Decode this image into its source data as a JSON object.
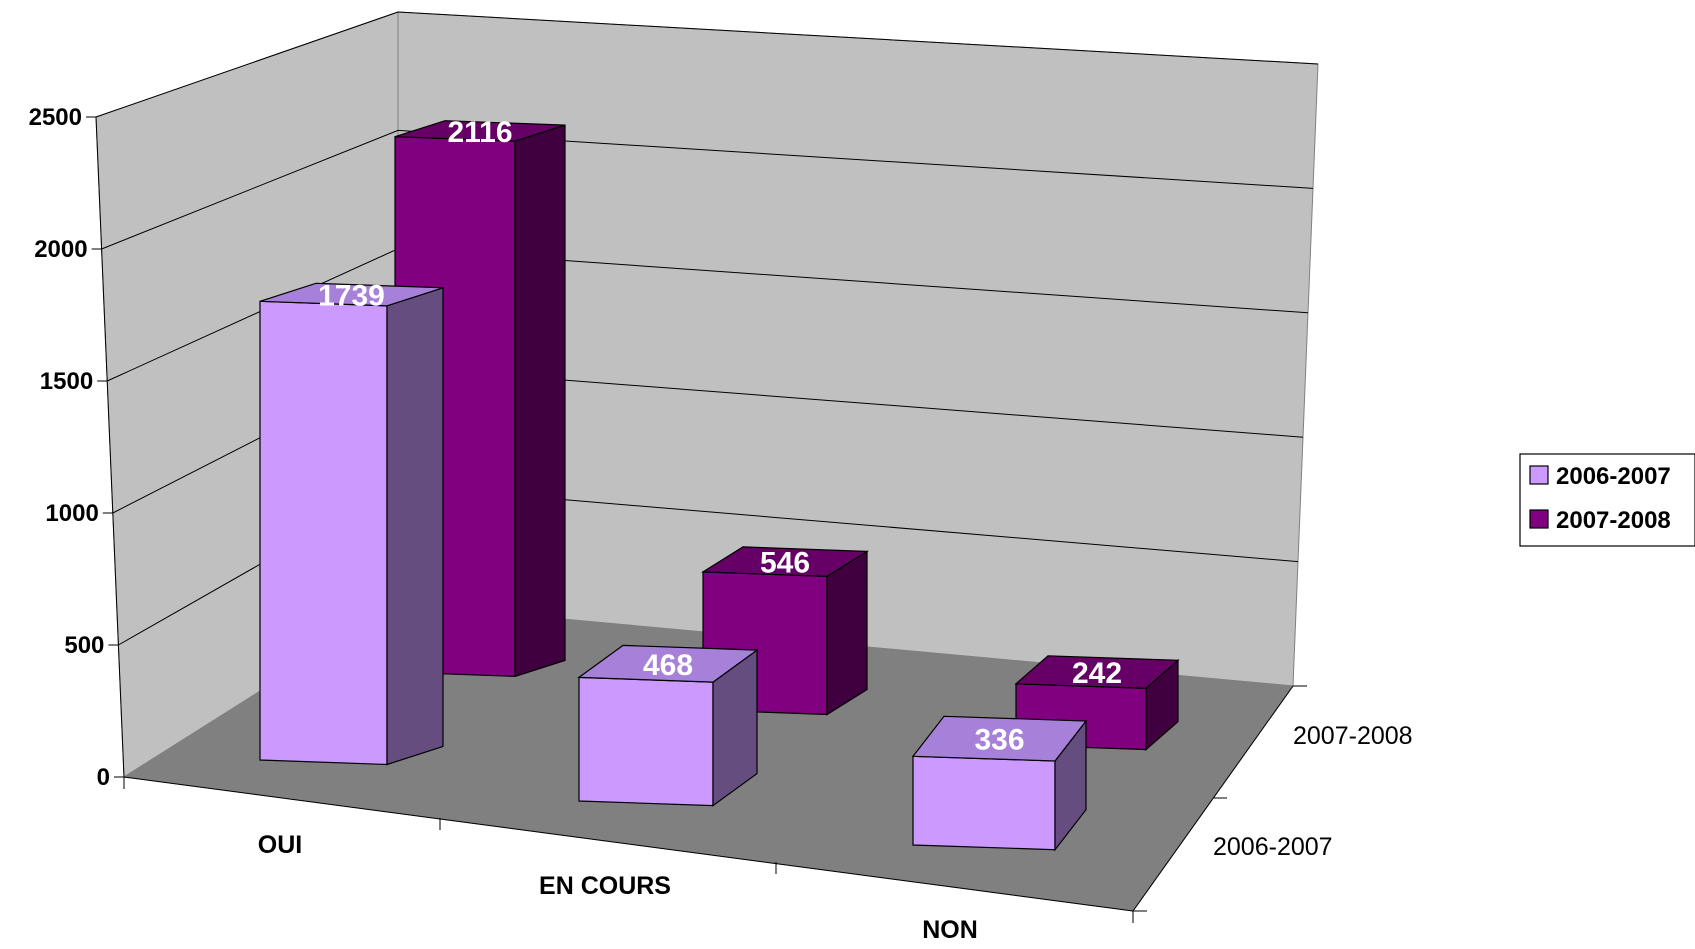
{
  "chart_data": {
    "type": "bar",
    "title": "",
    "categories": [
      "OUI",
      "EN COURS",
      "NON"
    ],
    "series": [
      {
        "name": "2006-2007",
        "values": [
          1739,
          468,
          336
        ]
      },
      {
        "name": "2007-2008",
        "values": [
          2116,
          546,
          242
        ]
      }
    ],
    "ylim": [
      0,
      2500
    ],
    "yticks": [
      "0",
      "500",
      "1000",
      "1500",
      "2000",
      "2500"
    ],
    "depth_labels": [
      "2007-2008",
      "2006-2007"
    ],
    "legend_position": "right",
    "grid": true,
    "colors": {
      "series_2006_front": "#cc99ff",
      "series_2006_top": "#a680d9",
      "series_2006_side": "#664d80",
      "series_2007_front": "#800080",
      "series_2007_top": "#660066",
      "series_2007_side": "#400040",
      "wall": "#c0c0c0",
      "floor": "#808080"
    }
  }
}
